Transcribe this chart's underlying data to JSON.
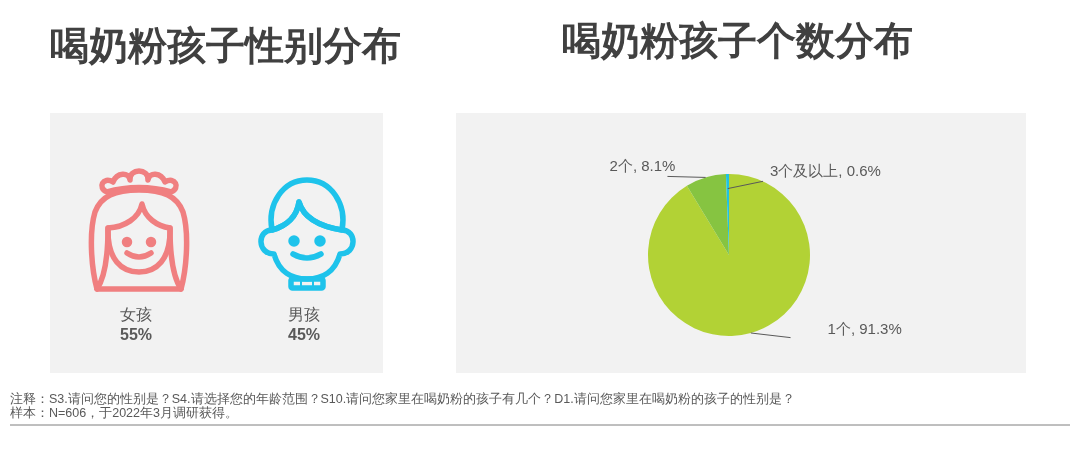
{
  "chart_data": [
    {
      "type": "other",
      "title": "喝奶粉孩子性别分布",
      "categories": [
        "女孩",
        "男孩"
      ],
      "value_labels": [
        "55%",
        "45%"
      ]
    },
    {
      "type": "pie",
      "title": "喝奶粉孩子个数分布",
      "categories": [
        "1个",
        "2个",
        "3个及以上"
      ],
      "values": [
        91.3,
        8.1,
        0.6
      ],
      "colors": [
        "#b2d235",
        "#86c441",
        "#1fc3e3"
      ],
      "value_labels": [
        ", 91.3%",
        ", 8.1%",
        ", 0.6%"
      ],
      "annotations": [
        "注释：S3.请问您的性别是？S4.请选择您的年龄范围？S10.请问您家里在喝奶粉的孩子有几个？D1.请问您家里在喝奶粉的孩子的性别是？",
        "样本：N=606，于2022年3月调研获得。"
      ]
    }
  ]
}
